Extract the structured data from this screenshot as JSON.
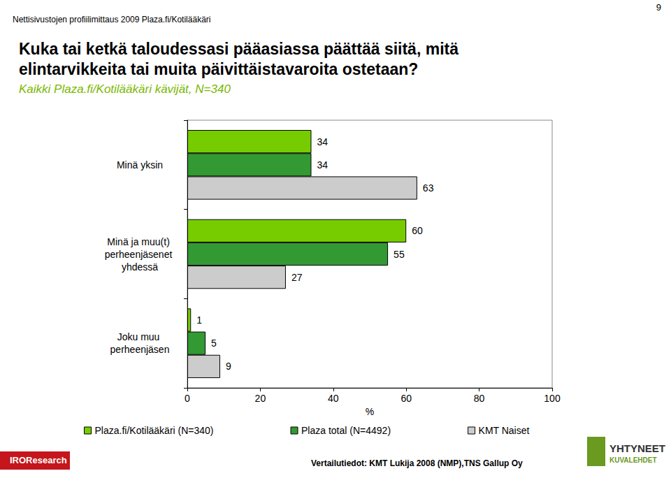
{
  "chart_data": {
    "type": "bar",
    "orientation": "horizontal",
    "title": "Kuka tai ketkä taloudessasi pääasiassa päättää siitä, mitä elintarvikkeita tai muita päivittäistavaroita ostetaan?",
    "subtitle": "Kaikki Plaza.fi/Kotilääkäri kävijät, N=340",
    "categories": [
      "Minä yksin",
      "Minä ja muu(t) perheenjäsenet yhdessä",
      "Joku muu perheenjäsen"
    ],
    "series": [
      {
        "name": "Plaza.fi/Kotilääkäri (N=340)",
        "color": "#77cc00",
        "values": [
          34,
          60,
          1
        ]
      },
      {
        "name": "Plaza total (N=4492)",
        "color": "#339933",
        "values": [
          34,
          55,
          5
        ]
      },
      {
        "name": "KMT Naiset",
        "color": "#cccccc",
        "values": [
          63,
          27,
          9
        ]
      }
    ],
    "xlabel": "%",
    "xlim": [
      0,
      100
    ],
    "xticks": [
      0,
      20,
      40,
      60,
      80,
      100
    ],
    "grid": false,
    "legend": "bottom",
    "data_labels": true,
    "annotations": [
      "Nettisivustojen profiilimittaus 2009 Plaza.fi/Kotilääkäri",
      "9",
      "Vertailutiedot: KMT Lukija 2008 (NMP),TNS Gallup Oy",
      "IROResearch",
      "YHTYNEET",
      "KUVALEHDET"
    ]
  }
}
